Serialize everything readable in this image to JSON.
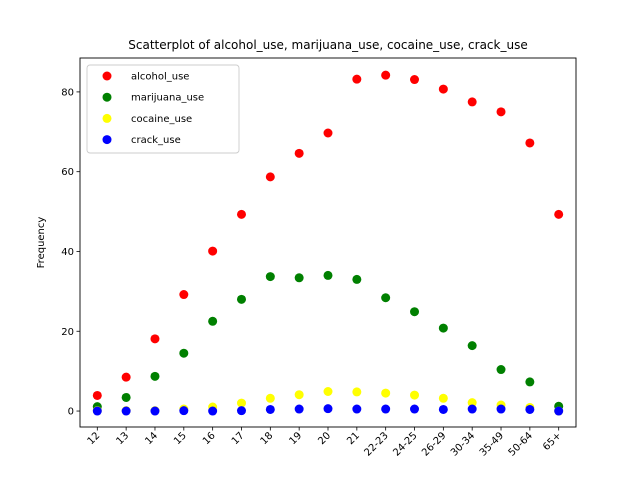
{
  "chart_data": {
    "type": "scatter",
    "title": "Scatterplot of alcohol_use, marijuana_use, cocaine_use, crack_use",
    "xlabel": "",
    "ylabel": "Frequency",
    "categories": [
      "12",
      "13",
      "14",
      "15",
      "16",
      "17",
      "18",
      "19",
      "20",
      "21",
      "22-23",
      "24-25",
      "26-29",
      "30-34",
      "35-49",
      "50-64",
      "65+"
    ],
    "ylim": [
      -4,
      88.5
    ],
    "yticks": [
      0,
      20,
      40,
      60,
      80
    ],
    "grid": false,
    "legend_position": "top-left",
    "series": [
      {
        "name": "alcohol_use",
        "color": "#ff0000",
        "values": [
          3.9,
          8.5,
          18.1,
          29.2,
          40.1,
          49.3,
          58.7,
          64.6,
          69.7,
          83.2,
          84.2,
          83.1,
          80.7,
          77.5,
          75.0,
          67.2,
          49.3
        ]
      },
      {
        "name": "marijuana_use",
        "color": "#008000",
        "values": [
          1.1,
          3.4,
          8.7,
          14.5,
          22.5,
          28.0,
          33.7,
          33.4,
          34.0,
          33.0,
          28.4,
          24.9,
          20.8,
          16.4,
          10.4,
          7.3,
          1.2
        ]
      },
      {
        "name": "cocaine_use",
        "color": "#ffff00",
        "values": [
          0.1,
          0.1,
          0.1,
          0.5,
          1.0,
          2.0,
          3.2,
          4.1,
          4.9,
          4.8,
          4.5,
          4.0,
          3.2,
          2.1,
          1.5,
          0.9,
          0.0
        ]
      },
      {
        "name": "crack_use",
        "color": "#0000ff",
        "values": [
          0.0,
          0.0,
          0.0,
          0.1,
          0.0,
          0.1,
          0.4,
          0.5,
          0.6,
          0.5,
          0.5,
          0.5,
          0.4,
          0.5,
          0.5,
          0.4,
          0.0
        ]
      }
    ]
  }
}
